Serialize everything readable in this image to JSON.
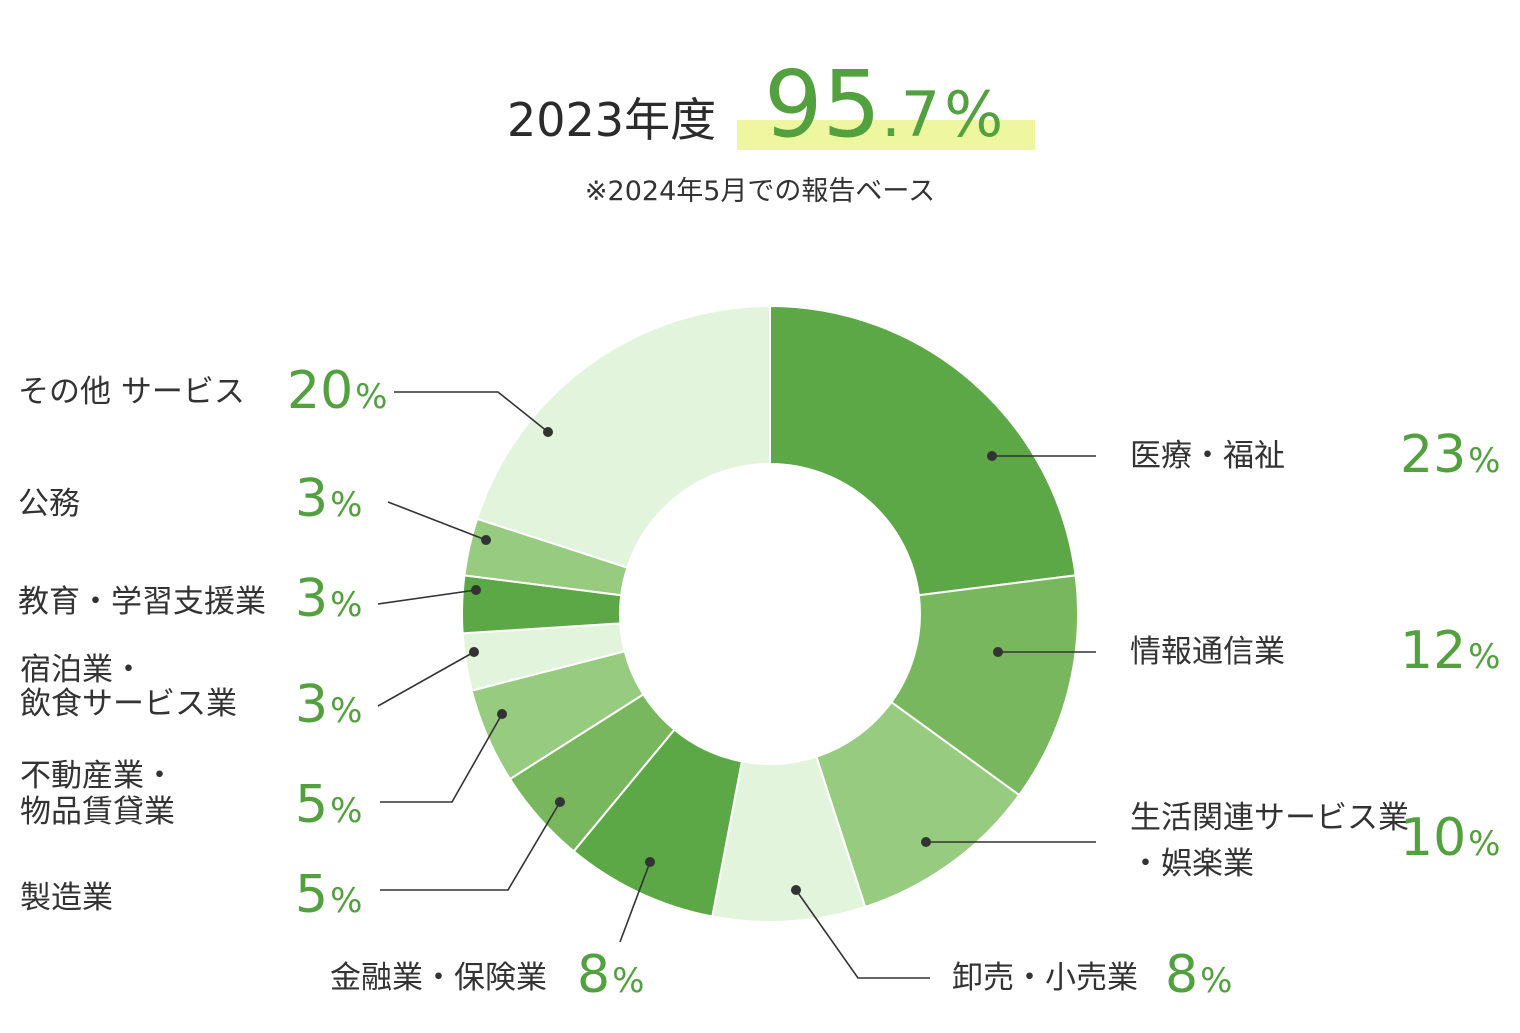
{
  "header": {
    "year_label": "2023年度",
    "rate_main": "95",
    "rate_decimal": ".7",
    "rate_unit": "%",
    "note": "※2024年5月での報告ベース",
    "highlight_color": "#eef7a0"
  },
  "chart_data": {
    "type": "pie",
    "donut": true,
    "unit": "%",
    "categories": [
      "医療・福祉",
      "情報通信業",
      "生活関連サービス業・娯楽業",
      "卸売・小売業",
      "金融業・保険業",
      "製造業",
      "不動産業・物品賃貸業",
      "宿泊業・飲食サービス業",
      "教育・学習支援業",
      "公務",
      "その他 サービス"
    ],
    "values": [
      23,
      12,
      10,
      8,
      8,
      5,
      5,
      3,
      3,
      3,
      20
    ],
    "colors": [
      "#5da846",
      "#79b75f",
      "#96cb80",
      "#e3f4dd",
      "#5da846",
      "#79b75f",
      "#96cb80",
      "#e3f4dd",
      "#5da846",
      "#96cb80",
      "#e3f4dd"
    ]
  },
  "labels": [
    {
      "lines": [
        "医療・福祉"
      ],
      "value": "23",
      "unit": "%"
    },
    {
      "lines": [
        "情報通信業"
      ],
      "value": "12",
      "unit": "%"
    },
    {
      "lines": [
        "生活関連サービス業",
        "・娯楽業"
      ],
      "value": "10",
      "unit": "%"
    },
    {
      "lines": [
        "卸売・小売業"
      ],
      "value": "8",
      "unit": "%"
    },
    {
      "lines": [
        "金融業・保険業"
      ],
      "value": "8",
      "unit": "%"
    },
    {
      "lines": [
        "製造業"
      ],
      "value": "5",
      "unit": "%"
    },
    {
      "lines": [
        "不動産業・",
        "物品賃貸業"
      ],
      "value": "5",
      "unit": "%"
    },
    {
      "lines": [
        "宿泊業・",
        "飲食サービス業"
      ],
      "value": "3",
      "unit": "%"
    },
    {
      "lines": [
        "教育・学習支援業"
      ],
      "value": "3",
      "unit": "%"
    },
    {
      "lines": [
        "公務"
      ],
      "value": "3",
      "unit": "%"
    },
    {
      "lines": [
        "その他 サービス"
      ],
      "value": "20",
      "unit": "%"
    }
  ]
}
